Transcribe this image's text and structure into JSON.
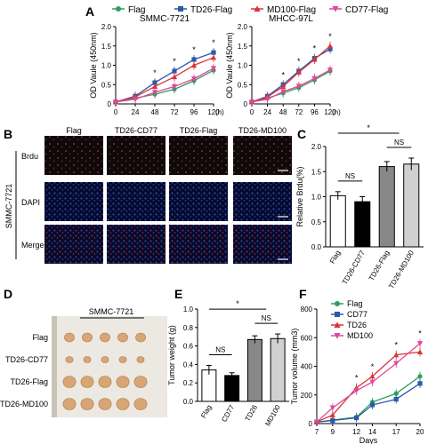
{
  "panel_labels": {
    "A": "A",
    "B": "B",
    "C": "C",
    "D": "D",
    "E": "E",
    "F": "F"
  },
  "legend_A": [
    {
      "name": "Flag",
      "color": "#2e9e5b",
      "marker": "circle"
    },
    {
      "name": "TD26-Flag",
      "color": "#2a5aa8",
      "marker": "square"
    },
    {
      "name": "MD100-Flag",
      "color": "#d9343a",
      "marker": "triangle"
    },
    {
      "name": "CD77-Flag",
      "color": "#e0479a",
      "marker": "triangle-down"
    }
  ],
  "images_B": {
    "row_group_label": "SMMC-7721",
    "columns": [
      "Flag",
      "TD26-CD77",
      "TD26-Flag",
      "TD26-MD100"
    ],
    "rows": [
      "Brdu",
      "DAPI",
      "Merge"
    ]
  },
  "images_D": {
    "title": "SMMC-7721",
    "rows": [
      "Flag",
      "TD26-CD77",
      "TD26-Flag",
      "TD26-MD100"
    ]
  },
  "chart_data": [
    {
      "panel": "A-left",
      "type": "line",
      "title": "SMMC-7721",
      "xlabel": "(h)",
      "ylabel": "OD Vaule (450nm)",
      "x": [
        0,
        24,
        48,
        72,
        96,
        120
      ],
      "xlim": [
        0,
        120
      ],
      "ylim": [
        0,
        2.0
      ],
      "yticks": [
        "0",
        "0.5",
        "1.0",
        "1.5",
        "2.0"
      ],
      "series": [
        {
          "name": "Flag",
          "values": [
            0.05,
            0.15,
            0.25,
            0.38,
            0.6,
            0.87
          ]
        },
        {
          "name": "TD26-Flag",
          "values": [
            0.05,
            0.2,
            0.55,
            0.85,
            1.15,
            1.33
          ]
        },
        {
          "name": "MD100-Flag",
          "values": [
            0.05,
            0.18,
            0.45,
            0.7,
            1.0,
            1.2
          ]
        },
        {
          "name": "CD77-Flag",
          "values": [
            0.05,
            0.12,
            0.3,
            0.45,
            0.65,
            0.92
          ]
        }
      ],
      "sig_marks": [
        "*",
        "*",
        "*",
        "*"
      ]
    },
    {
      "panel": "A-right",
      "type": "line",
      "title": "MHCC-97L",
      "xlabel": "(h)",
      "ylabel": "OD Vaule (450nm)",
      "x": [
        0,
        24,
        48,
        72,
        96,
        120
      ],
      "xlim": [
        0,
        120
      ],
      "ylim": [
        0,
        2.0
      ],
      "yticks": [
        "0",
        "0.5",
        "1.0",
        "1.5",
        "2.0"
      ],
      "series": [
        {
          "name": "Flag",
          "values": [
            0.05,
            0.15,
            0.28,
            0.42,
            0.62,
            0.85
          ]
        },
        {
          "name": "TD26-Flag",
          "values": [
            0.05,
            0.2,
            0.5,
            0.85,
            1.18,
            1.42
          ]
        },
        {
          "name": "MD100-Flag",
          "values": [
            0.05,
            0.18,
            0.45,
            0.82,
            1.15,
            1.5
          ]
        },
        {
          "name": "CD77-Flag",
          "values": [
            0.05,
            0.12,
            0.32,
            0.46,
            0.66,
            0.88
          ]
        }
      ],
      "sig_marks": [
        "*",
        "*",
        "*",
        "*"
      ]
    },
    {
      "panel": "C",
      "type": "bar",
      "ylabel": "Relative Brdu(%)",
      "categories": [
        "Flag",
        "TD26-CD77",
        "TD26-Flag",
        "TD26-MD100"
      ],
      "values": [
        1.02,
        0.9,
        1.6,
        1.65
      ],
      "errors": [
        0.08,
        0.1,
        0.1,
        0.12
      ],
      "colors": [
        "#ffffff",
        "#000000",
        "#888888",
        "#d0d0d0"
      ],
      "ylim": [
        0,
        2.0
      ],
      "yticks": [
        "0.0",
        "0.5",
        "1.0",
        "1.5",
        "2.0"
      ],
      "annotations": [
        "NS",
        "NS",
        "*"
      ]
    },
    {
      "panel": "E",
      "type": "bar",
      "ylabel": "Tumor weight (g)",
      "categories": [
        "Flag",
        "CD77",
        "TD26",
        "MD100"
      ],
      "values": [
        0.34,
        0.28,
        0.67,
        0.68
      ],
      "errors": [
        0.05,
        0.03,
        0.04,
        0.05
      ],
      "colors": [
        "#ffffff",
        "#000000",
        "#888888",
        "#d0d0d0"
      ],
      "ylim": [
        0,
        1.0
      ],
      "yticks": [
        "0.0",
        "0.2",
        "0.4",
        "0.6",
        "0.8",
        "1.0"
      ],
      "annotations": [
        "NS",
        "NS",
        "*"
      ]
    },
    {
      "panel": "F",
      "type": "line",
      "xlabel": "Days",
      "ylabel": "Tumor volume (mm3)",
      "x": [
        7,
        9,
        12,
        14,
        17,
        20
      ],
      "xlim": [
        7,
        20
      ],
      "ylim": [
        0,
        800
      ],
      "xticks": [
        "7",
        "9",
        "12",
        "14",
        "17",
        "20"
      ],
      "yticks": [
        "0",
        "200",
        "400",
        "600",
        "800"
      ],
      "series": [
        {
          "name": "Flag",
          "values": [
            10,
            25,
            45,
            150,
            210,
            330
          ]
        },
        {
          "name": "CD77",
          "values": [
            10,
            22,
            40,
            130,
            170,
            280
          ]
        },
        {
          "name": "TD26",
          "values": [
            12,
            60,
            250,
            330,
            480,
            500
          ]
        },
        {
          "name": "MD100",
          "values": [
            12,
            110,
            230,
            290,
            420,
            560
          ]
        }
      ],
      "sig_marks": [
        "*",
        "*",
        "*",
        "*"
      ]
    }
  ],
  "colors": {
    "flag": "#2e9e5b",
    "td26": "#2a5aa8",
    "md100": "#d9343a",
    "cd77": "#e0479a"
  }
}
